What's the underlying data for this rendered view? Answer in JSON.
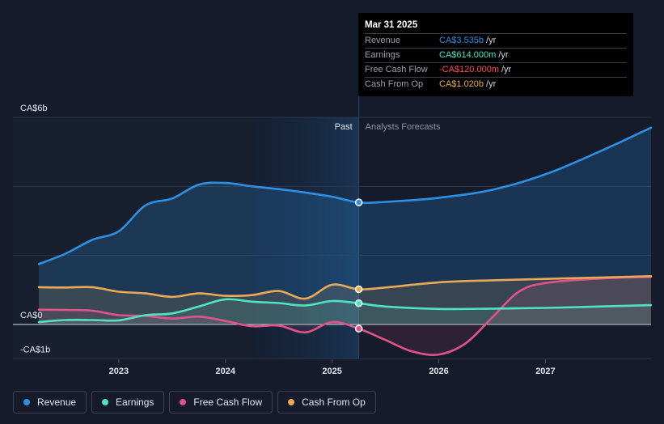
{
  "chart_data": {
    "type": "line",
    "title": "",
    "y_axis": {
      "labels": [
        "CA$6b",
        "CA$0",
        "-CA$1b"
      ],
      "ylim": [
        -1,
        6
      ],
      "unit": "CA$ billions"
    },
    "x_axis": {
      "ticks": [
        {
          "label": "2023",
          "year": 2023.0
        },
        {
          "label": "2024",
          "year": 2024.0
        },
        {
          "label": "2025",
          "year": 2025.0
        },
        {
          "label": "2026",
          "year": 2026.0
        },
        {
          "label": "2027",
          "year": 2027.0
        }
      ],
      "xlim": [
        2022.25,
        2027.99
      ]
    },
    "divider": {
      "year": 2025.25,
      "past_label": "Past",
      "forecast_label": "Analysts Forecasts"
    },
    "series": [
      {
        "name": "Revenue",
        "color": "#2e90e5",
        "points": [
          [
            2022.25,
            1.75
          ],
          [
            2022.5,
            2.05
          ],
          [
            2022.75,
            2.45
          ],
          [
            2023.0,
            2.7
          ],
          [
            2023.25,
            3.45
          ],
          [
            2023.5,
            3.65
          ],
          [
            2023.75,
            4.05
          ],
          [
            2024.0,
            4.1
          ],
          [
            2024.25,
            4.0
          ],
          [
            2024.5,
            3.92
          ],
          [
            2024.75,
            3.82
          ],
          [
            2025.0,
            3.7
          ],
          [
            2025.25,
            3.535
          ],
          [
            2025.5,
            3.55
          ],
          [
            2026.0,
            3.67
          ],
          [
            2026.5,
            3.9
          ],
          [
            2027.0,
            4.35
          ],
          [
            2027.5,
            5.0
          ],
          [
            2027.99,
            5.7
          ]
        ]
      },
      {
        "name": "Earnings",
        "color": "#50e3c2",
        "points": [
          [
            2022.25,
            0.07
          ],
          [
            2022.5,
            0.13
          ],
          [
            2022.75,
            0.13
          ],
          [
            2023.0,
            0.12
          ],
          [
            2023.25,
            0.27
          ],
          [
            2023.5,
            0.32
          ],
          [
            2023.75,
            0.52
          ],
          [
            2024.0,
            0.73
          ],
          [
            2024.25,
            0.66
          ],
          [
            2024.5,
            0.62
          ],
          [
            2024.75,
            0.55
          ],
          [
            2025.0,
            0.68
          ],
          [
            2025.25,
            0.614
          ],
          [
            2025.5,
            0.52
          ],
          [
            2026.0,
            0.45
          ],
          [
            2026.5,
            0.46
          ],
          [
            2027.0,
            0.48
          ],
          [
            2027.5,
            0.52
          ],
          [
            2027.99,
            0.56
          ]
        ]
      },
      {
        "name": "Free Cash Flow",
        "color": "#e0528a",
        "points": [
          [
            2022.25,
            0.43
          ],
          [
            2022.5,
            0.42
          ],
          [
            2022.75,
            0.4
          ],
          [
            2023.0,
            0.27
          ],
          [
            2023.25,
            0.25
          ],
          [
            2023.5,
            0.17
          ],
          [
            2023.75,
            0.23
          ],
          [
            2024.0,
            0.1
          ],
          [
            2024.25,
            -0.05
          ],
          [
            2024.5,
            -0.03
          ],
          [
            2024.75,
            -0.23
          ],
          [
            2025.0,
            0.07
          ],
          [
            2025.25,
            -0.12
          ],
          [
            2025.5,
            -0.45
          ],
          [
            2025.75,
            -0.78
          ],
          [
            2026.0,
            -0.87
          ],
          [
            2026.25,
            -0.55
          ],
          [
            2026.5,
            0.2
          ],
          [
            2026.75,
            0.95
          ],
          [
            2027.0,
            1.2
          ],
          [
            2027.5,
            1.33
          ],
          [
            2027.99,
            1.38
          ]
        ]
      },
      {
        "name": "Cash From Op",
        "color": "#e8a958",
        "points": [
          [
            2022.25,
            1.08
          ],
          [
            2022.5,
            1.07
          ],
          [
            2022.75,
            1.08
          ],
          [
            2023.0,
            0.95
          ],
          [
            2023.25,
            0.9
          ],
          [
            2023.5,
            0.8
          ],
          [
            2023.75,
            0.9
          ],
          [
            2024.0,
            0.83
          ],
          [
            2024.25,
            0.85
          ],
          [
            2024.5,
            0.97
          ],
          [
            2024.75,
            0.75
          ],
          [
            2025.0,
            1.15
          ],
          [
            2025.25,
            1.02
          ],
          [
            2025.5,
            1.07
          ],
          [
            2026.0,
            1.22
          ],
          [
            2026.5,
            1.28
          ],
          [
            2027.0,
            1.32
          ],
          [
            2027.5,
            1.36
          ],
          [
            2027.99,
            1.4
          ]
        ]
      }
    ]
  },
  "tooltip": {
    "date": "Mar 31 2025",
    "rows": [
      {
        "label": "Revenue",
        "value": "CA$3.535b",
        "unit": "/yr",
        "color": "#2e90e5"
      },
      {
        "label": "Earnings",
        "value": "CA$614.000m",
        "unit": "/yr",
        "color": "#50e3c2"
      },
      {
        "label": "Free Cash Flow",
        "value": "-CA$120.000m",
        "unit": "/yr",
        "color": "#ff4d5a"
      },
      {
        "label": "Cash From Op",
        "value": "CA$1.020b",
        "unit": "/yr",
        "color": "#e8a958"
      }
    ]
  },
  "legend": [
    {
      "label": "Revenue",
      "color": "#2e90e5"
    },
    {
      "label": "Earnings",
      "color": "#50e3c2"
    },
    {
      "label": "Free Cash Flow",
      "color": "#e0528a"
    },
    {
      "label": "Cash From Op",
      "color": "#e8a958"
    }
  ]
}
